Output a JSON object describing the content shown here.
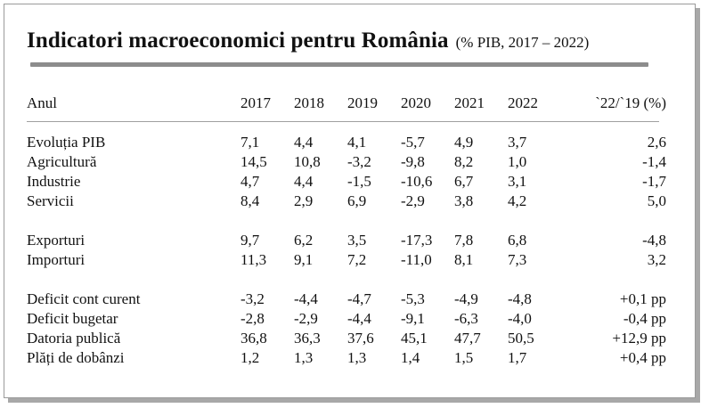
{
  "title": "Indicatori macroeconomici pentru România",
  "subtitle": "(% PIB, 2017 – 2022)",
  "header": {
    "label": "Anul",
    "years": [
      "2017",
      "2018",
      "2019",
      "2020",
      "2021",
      "2022"
    ],
    "change": "`22/`19 (%)"
  },
  "rows": [
    {
      "label": "Evoluția PIB",
      "values": [
        "7,1",
        "4,4",
        "4,1",
        "-5,7",
        "4,9",
        "3,7"
      ],
      "change": "2,6"
    },
    {
      "label": "Agricultură",
      "values": [
        "14,5",
        "10,8",
        "-3,2",
        "-9,8",
        "8,2",
        "1,0"
      ],
      "change": "-1,4"
    },
    {
      "label": "Industrie",
      "values": [
        "4,7",
        "4,4",
        "-1,5",
        "-10,6",
        "6,7",
        "3,1"
      ],
      "change": "-1,7"
    },
    {
      "label": "Servicii",
      "values": [
        "8,4",
        "2,9",
        "6,9",
        "-2,9",
        "3,8",
        "4,2"
      ],
      "change": "5,0"
    },
    {
      "label": "Exporturi",
      "values": [
        "9,7",
        "6,2",
        "3,5",
        "-17,3",
        "7,8",
        "6,8"
      ],
      "change": "-4,8"
    },
    {
      "label": "Importuri",
      "values": [
        "11,3",
        "9,1",
        "7,2",
        "-11,0",
        "8,1",
        "7,3"
      ],
      "change": "3,2"
    },
    {
      "label": "Deficit cont curent",
      "values": [
        "-3,2",
        "-4,4",
        "-4,7",
        "-5,3",
        "-4,9",
        "-4,8"
      ],
      "change": "+0,1 pp"
    },
    {
      "label": "Deficit bugetar",
      "values": [
        "-2,8",
        "-2,9",
        "-4,4",
        "-9,1",
        "-6,3",
        "-4,0"
      ],
      "change": "-0,4 pp"
    },
    {
      "label": "Datoria publică",
      "values": [
        "36,8",
        "36,3",
        "37,6",
        "45,1",
        "47,7",
        "50,5"
      ],
      "change": "+12,9 pp"
    },
    {
      "label": "Plăți de dobânzi",
      "values": [
        "1,2",
        "1,3",
        "1,3",
        "1,4",
        "1,5",
        "1,7"
      ],
      "change": "+0,4 pp"
    }
  ]
}
